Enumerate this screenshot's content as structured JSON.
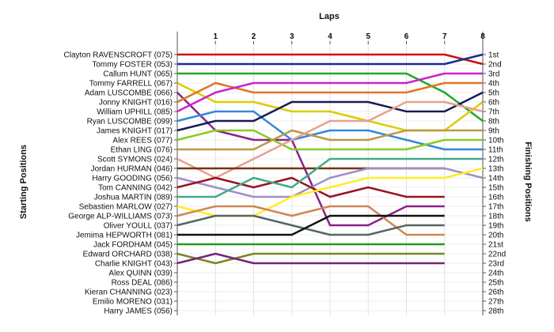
{
  "chart_data": {
    "type": "line",
    "title": "Laps",
    "ylabel_left": "Starting Positions",
    "ylabel_right": "Finishing Positions",
    "x": [
      0,
      1,
      2,
      3,
      4,
      5,
      6,
      7,
      8
    ],
    "x_ticks": [
      "1",
      "2",
      "3",
      "4",
      "5",
      "6",
      "7",
      "8"
    ],
    "finishing_labels": [
      "1st",
      "2nd",
      "3rd",
      "4th",
      "5th",
      "6th",
      "7th",
      "8th",
      "9th",
      "10th",
      "11th",
      "12th",
      "13th",
      "14th",
      "15th",
      "16th",
      "17th",
      "18th",
      "19th",
      "20th",
      "21st",
      "22nd",
      "23rd",
      "24th",
      "25th",
      "26th",
      "27th",
      "28th"
    ],
    "series": [
      {
        "name": "Clayton RAVENSCROFT (075)",
        "color": "#cc1111",
        "positions": [
          1,
          1,
          1,
          1,
          1,
          1,
          1,
          1,
          2
        ]
      },
      {
        "name": "Tommy FOSTER (053)",
        "color": "#1a2a99",
        "positions": [
          2,
          2,
          2,
          2,
          2,
          2,
          2,
          2,
          1
        ]
      },
      {
        "name": "Callum HUNT (065)",
        "color": "#22aa22",
        "positions": [
          3,
          3,
          3,
          3,
          3,
          3,
          3,
          5,
          8
        ]
      },
      {
        "name": "Tommy FARRELL (067)",
        "color": "#ddcc00",
        "positions": [
          4,
          6,
          6,
          7,
          7,
          8,
          9,
          9,
          6
        ]
      },
      {
        "name": "Adam LUSCOMBE (066)",
        "color": "#882288",
        "positions": [
          5,
          9,
          10,
          10,
          19,
          19,
          17,
          17,
          null
        ]
      },
      {
        "name": "Jonny KNIGHT (016)",
        "color": "#dd7722",
        "positions": [
          6,
          4,
          5,
          5,
          5,
          5,
          5,
          4,
          4
        ]
      },
      {
        "name": "William UPHILL (085)",
        "color": "#cc22cc",
        "positions": [
          7,
          5,
          4,
          4,
          4,
          4,
          4,
          3,
          3
        ]
      },
      {
        "name": "Ryan LUSCOMBE (099)",
        "color": "#3388dd",
        "positions": [
          8,
          7,
          7,
          10,
          9,
          9,
          10,
          11,
          11
        ]
      },
      {
        "name": "James KNIGHT (017)",
        "color": "#1a1a55",
        "positions": [
          9,
          8,
          8,
          6,
          6,
          6,
          7,
          7,
          5
        ]
      },
      {
        "name": "Alex REES (077)",
        "color": "#88cc22",
        "positions": [
          10,
          9,
          9,
          11,
          11,
          11,
          11,
          10,
          10
        ]
      },
      {
        "name": "Ethan LING (076)",
        "color": "#bb9944",
        "positions": [
          11,
          11,
          11,
          9,
          10,
          10,
          9,
          9,
          9
        ]
      },
      {
        "name": "Scott SYMONS (024)",
        "color": "#e8a090",
        "positions": [
          12,
          14,
          12,
          10,
          8,
          8,
          6,
          6,
          7
        ]
      },
      {
        "name": "Jordan HURMAN (046)",
        "color": "#773311",
        "positions": [
          13,
          13,
          13,
          13,
          13,
          13,
          13,
          13,
          null
        ]
      },
      {
        "name": "Harry GOODING (056)",
        "color": "#a08fc8",
        "positions": [
          14,
          15,
          16,
          16,
          14,
          13,
          13,
          13,
          14
        ]
      },
      {
        "name": "Tom CANNING (042)",
        "color": "#991122",
        "positions": [
          15,
          14,
          15,
          14,
          16,
          15,
          16,
          16,
          null
        ]
      },
      {
        "name": "Joshua MARTIN (089)",
        "color": "#44aa88",
        "positions": [
          16,
          16,
          14,
          15,
          12,
          12,
          12,
          12,
          12
        ]
      },
      {
        "name": "Sebastien MARLOW (027)",
        "color": "#ffee22",
        "positions": [
          17,
          18,
          18,
          16,
          15,
          14,
          14,
          14,
          13
        ]
      },
      {
        "name": "George ALP-WILLIAMS (073)",
        "color": "#cc8855",
        "positions": [
          18,
          17,
          17,
          18,
          17,
          17,
          20,
          20,
          null
        ]
      },
      {
        "name": "Oliver YOULL (037)",
        "color": "#556666",
        "positions": [
          19,
          18,
          18,
          19,
          20,
          20,
          19,
          19,
          null
        ]
      },
      {
        "name": "Jemima HEPWORTH (081)",
        "color": "#111111",
        "positions": [
          20,
          20,
          20,
          20,
          18,
          18,
          18,
          18,
          null
        ]
      },
      {
        "name": "Jack FORDHAM (045)",
        "color": "#229922",
        "positions": [
          21,
          21,
          21,
          21,
          21,
          21,
          21,
          21,
          null
        ]
      },
      {
        "name": "Edward ORCHARD (038)",
        "color": "#778822",
        "positions": [
          22,
          23,
          22,
          22,
          22,
          22,
          22,
          22,
          null
        ]
      },
      {
        "name": "Charlie KNIGHT (043)",
        "color": "#772277",
        "positions": [
          23,
          22,
          23,
          23,
          23,
          23,
          23,
          23,
          null
        ]
      },
      {
        "name": "Alex QUINN (039)",
        "color": "#cccccc",
        "positions": [
          24,
          null,
          null,
          null,
          null,
          null,
          null,
          null,
          null
        ]
      },
      {
        "name": "Ross DEAL (086)",
        "color": "#cccccc",
        "positions": [
          25,
          null,
          null,
          null,
          null,
          null,
          null,
          null,
          null
        ]
      },
      {
        "name": "Kieran CHANNING (023)",
        "color": "#cccccc",
        "positions": [
          26,
          null,
          null,
          null,
          null,
          null,
          null,
          null,
          null
        ]
      },
      {
        "name": "Emilio MORENO (031)",
        "color": "#cccccc",
        "positions": [
          27,
          null,
          null,
          null,
          null,
          null,
          null,
          null,
          null
        ]
      },
      {
        "name": "Harry JAMES (056)",
        "color": "#cccccc",
        "positions": [
          28,
          null,
          null,
          null,
          null,
          null,
          null,
          null,
          null
        ]
      }
    ],
    "grid": true
  }
}
